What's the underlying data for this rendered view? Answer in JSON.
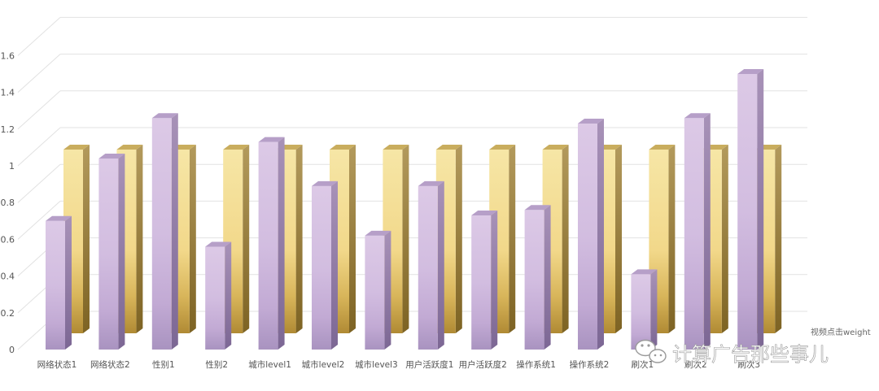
{
  "chart_data": {
    "type": "bar",
    "title": "",
    "xlabel": "",
    "ylabel": "",
    "ylim": [
      0,
      1.6
    ],
    "yticks": [
      "0",
      "0.2",
      "0.4",
      "0.6",
      "0.8",
      "1",
      "1.2",
      "1.4",
      "1.6"
    ],
    "grid": true,
    "categories": [
      "网络状态1",
      "网络状态2",
      "性别1",
      "性别2",
      "城市level1",
      "城市level2",
      "城市level3",
      "用户活跃度1",
      "用户活跃度2",
      "操作系统1",
      "操作系统2",
      "刷次1",
      "刷次2",
      "刷次3"
    ],
    "series": [
      {
        "name": "视频点击weight",
        "color": "#f3dd8e",
        "values": [
          1.0,
          1.0,
          1.0,
          1.0,
          1.0,
          1.0,
          1.0,
          1.0,
          1.0,
          1.0,
          1.0,
          1.0,
          1.0,
          1.0
        ]
      },
      {
        "name": "",
        "color": "#c7b2d8",
        "values": [
          0.7,
          1.04,
          1.26,
          0.56,
          1.13,
          0.89,
          0.62,
          0.89,
          0.73,
          0.76,
          1.23,
          0.41,
          1.26,
          1.5
        ]
      }
    ],
    "legend_position": "bottom-right"
  },
  "watermark": {
    "text": "计算广告那些事儿",
    "icon": "wechat-icon"
  }
}
